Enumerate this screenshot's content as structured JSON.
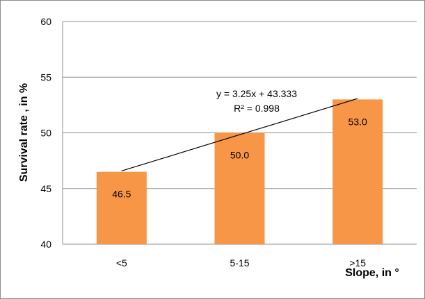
{
  "chart_data": {
    "type": "bar",
    "categories": [
      "<5",
      "5-15",
      ">15"
    ],
    "values": [
      46.5,
      50.0,
      53.0
    ],
    "data_labels": [
      "46.5",
      "50.0",
      "53.0"
    ],
    "bar_color": "#f79646",
    "xlabel": "Slope,  in °",
    "ylabel": "Survival rate , in %",
    "ylim": [
      40,
      60
    ],
    "yticks": [
      "40",
      "45",
      "50",
      "55",
      "60"
    ],
    "grid": true,
    "legend": "none",
    "trendline": {
      "type": "linear",
      "slope": 3.25,
      "intercept": 43.333,
      "equation": "y = 3.25x + 43.333",
      "r_squared": "R² = 0.998",
      "color": "#000000"
    }
  }
}
